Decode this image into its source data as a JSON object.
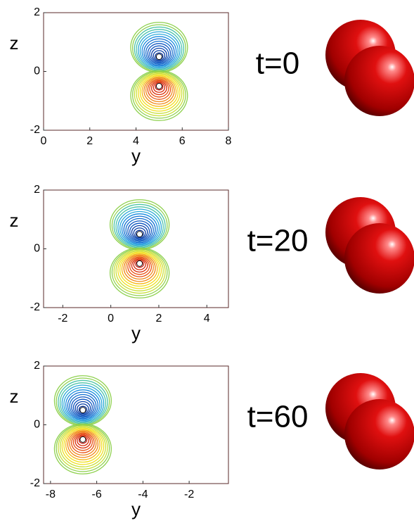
{
  "chart_data": [
    {
      "type": "contour",
      "annotation": "t=0",
      "xlabel": "y",
      "ylabel": "z",
      "xlim": [
        0,
        8
      ],
      "ylim": [
        -2,
        2
      ],
      "xticks": [
        0,
        2,
        4,
        6,
        8
      ],
      "yticks": [
        -2,
        0,
        2
      ],
      "x": [
        5,
        5
      ],
      "values": [
        0.5,
        -0.5
      ]
    },
    {
      "type": "contour",
      "annotation": "t=20",
      "xlabel": "y",
      "ylabel": "z",
      "xlim": [
        -2.8,
        4.9
      ],
      "ylim": [
        -2,
        2
      ],
      "xticks": [
        -2,
        0,
        2,
        4
      ],
      "yticks": [
        -2,
        0,
        2
      ],
      "x": [
        1.2,
        1.2
      ],
      "values": [
        0.5,
        -0.5
      ]
    },
    {
      "type": "contour",
      "annotation": "t=60",
      "xlabel": "y",
      "ylabel": "z",
      "xlim": [
        -8.3,
        -0.3
      ],
      "ylim": [
        -2,
        2
      ],
      "xticks": [
        -8,
        -6,
        -4,
        -2
      ],
      "yticks": [
        -2,
        0,
        2
      ],
      "x": [
        -6.6,
        -6.6
      ],
      "values": [
        0.5,
        -0.5
      ]
    }
  ]
}
